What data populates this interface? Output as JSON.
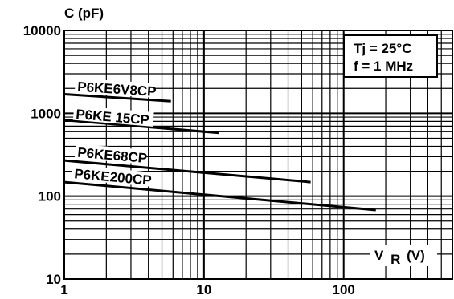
{
  "chart_data": {
    "type": "line",
    "ylabel": "C (pF)",
    "xlabel": "V",
    "xlabel_sub": "R",
    "xlabel_unit": "(V)",
    "xscale": "log",
    "yscale": "log",
    "xlim": [
      1,
      600
    ],
    "ylim": [
      10,
      10000
    ],
    "grid": true,
    "x_ticks": [
      "1",
      "10",
      "100"
    ],
    "y_ticks": [
      "10",
      "100",
      "1000",
      "10000"
    ],
    "annotation": [
      "Tj = 25°C",
      "f = 1 MHz"
    ],
    "series": [
      {
        "name": "P6KE6V8CP",
        "x": [
          1,
          5.8
        ],
        "y": [
          1700,
          1400
        ]
      },
      {
        "name": "P6KE 15CP",
        "x": [
          1,
          12.8
        ],
        "y": [
          830,
          580
        ]
      },
      {
        "name": "P6KE68CP",
        "x": [
          1,
          58
        ],
        "y": [
          270,
          148
        ]
      },
      {
        "name": "P6KE200CP",
        "x": [
          1,
          170
        ],
        "y": [
          148,
          68
        ]
      }
    ]
  }
}
